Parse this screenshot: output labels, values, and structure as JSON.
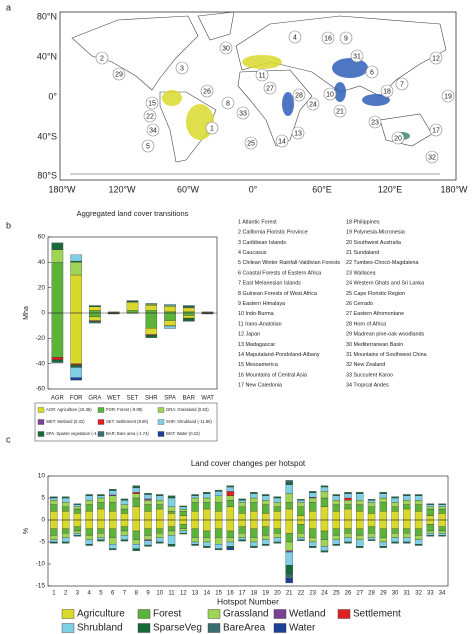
{
  "panel_labels": [
    "a",
    "b",
    "c"
  ],
  "map": {
    "lat_labels": [
      "80°N",
      "40°N",
      "0°",
      "40°S",
      "80°S"
    ],
    "lon_labels": [
      "180°W",
      "120°W",
      "60°W",
      "0°",
      "60°E",
      "120°E",
      "180°W"
    ],
    "hotspot_labels": [
      "1",
      "2",
      "3",
      "4",
      "5",
      "6",
      "7",
      "8",
      "9",
      "10",
      "11",
      "12",
      "13",
      "14",
      "15",
      "16",
      "17",
      "18",
      "19",
      "20",
      "21",
      "22",
      "23",
      "24",
      "25",
      "26",
      "27",
      "28",
      "29",
      "30",
      "31",
      "32",
      "33",
      "34"
    ]
  },
  "hotspots": [
    "1 Atlantic Forest",
    "2 California Floristic Province",
    "3 Caribbean Islands",
    "4 Caucasus",
    "5 Chilean Winter Rainfall-Valdivian Forests",
    "6 Coastal Forests of Eastern Africa",
    "7 East Melanesian Islands",
    "8 Guinean Forests of West Africa",
    "9 Eastern Himalaya",
    "10 Indo-Burma",
    "11 Irano-Anatolian",
    "12 Japan",
    "13 Madagascar",
    "14 Maputaland-Pondoland-Albany",
    "15 Mesoamerica",
    "16 Mountains of Central Asia",
    "17 New Caledonia",
    "18 Philippines",
    "19 Polynesia-Micronesia",
    "20 Southwest Australia",
    "21 Sundaland",
    "22 Tumbes-Chocó-Magdalena",
    "23 Wallacea",
    "24 Western Ghats and Sri Lanka",
    "25 Cape Floristic Region",
    "26 Cerrado",
    "27 Eastern Afromontane",
    "28 Horn of Africa",
    "29 Madrean pine-oak woodlands",
    "30 Mediterranean Basin",
    "31 Mountains of Southwest China",
    "32 New Zealand",
    "33 Succulent Karoo",
    "34 Tropical Andes"
  ],
  "chart_data": [
    {
      "type": "bar",
      "title": "Aggregated land cover transitions",
      "ylabel": "Mha",
      "categories": [
        "AGR",
        "FOR",
        "GRA",
        "WET",
        "SET",
        "SHR",
        "SPA",
        "BAR",
        "WAT"
      ],
      "ylim": [
        -60,
        60
      ],
      "yticks": [
        -60,
        -40,
        -20,
        0,
        20,
        40,
        60
      ],
      "series": [
        {
          "color": "#5bb33a",
          "values": [
            40,
            null,
            2,
            0.3,
            2,
            2,
            1,
            1,
            0.3
          ]
        },
        {
          "color": "#d9d92b",
          "values": [
            null,
            30,
            3,
            0.4,
            6,
            4,
            4,
            3,
            0.4
          ]
        },
        {
          "color": "#9fd456",
          "values": [
            10,
            10,
            null,
            0.2,
            1,
            1,
            1,
            0.5,
            0.2
          ]
        },
        {
          "color": "#166a3a",
          "values": [
            5,
            1,
            0.5,
            null,
            0.5,
            0.5,
            null,
            1,
            null
          ]
        },
        {
          "color": "#7fcfe6",
          "values": [
            0.5,
            5,
            0.5,
            null,
            0.3,
            null,
            1,
            0.5,
            null
          ]
        },
        {
          "color": "#5bb33a",
          "values": [
            -35,
            null,
            -3,
            -0.3,
            -0.2,
            -12,
            -6,
            -2,
            -0.3
          ]
        },
        {
          "color": "#d9d92b",
          "values": [
            null,
            -40,
            -3,
            -0.3,
            -0.1,
            -5,
            -4,
            -2,
            -0.3
          ]
        },
        {
          "color": "#e02020",
          "values": [
            -2,
            -1,
            -0.5,
            null,
            null,
            -0.5,
            -0.3,
            -0.2,
            null
          ]
        },
        {
          "color": "#166a3a",
          "values": [
            -2,
            -2,
            -1,
            null,
            null,
            -2,
            null,
            -2,
            -0.2
          ]
        },
        {
          "color": "#7fcfe6",
          "values": [
            -0.5,
            -8,
            -0.5,
            null,
            null,
            null,
            -2,
            -0.5,
            null
          ]
        },
        {
          "color": "#1c3f99",
          "values": [
            null,
            -2,
            null,
            -0.2,
            null,
            null,
            null,
            null,
            null
          ]
        }
      ],
      "legend": [
        {
          "label": "AGR: Agriculture (16.35)",
          "color": "#d9d92b"
        },
        {
          "label": "FOR: Forest (-9.08)",
          "color": "#5bb33a"
        },
        {
          "label": "GRA: Grassland (0.53)",
          "color": "#9fd456"
        },
        {
          "label": "WET: Wetland (0.32)",
          "color": "#7b3f98"
        },
        {
          "label": "SET: Settlement (9.80)",
          "color": "#e02020"
        },
        {
          "label": "SHR: Shrubland (-11.80)",
          "color": "#7fcfe6"
        },
        {
          "label": "SPA: Sparse vegetation (-4.60)",
          "color": "#166a3a"
        },
        {
          "label": "BAR: Bare area (-1.74)",
          "color": "#3b6e6e"
        },
        {
          "label": "WAT: Water (0.22)",
          "color": "#1c3f99"
        }
      ]
    },
    {
      "type": "bar",
      "title": "Land cover changes per hotspot",
      "ylabel": "%",
      "xlabel": "Hotspot Number",
      "categories": [
        "1",
        "2",
        "3",
        "4",
        "5",
        "6",
        "7",
        "8",
        "9",
        "10",
        "11",
        "12",
        "13",
        "14",
        "15",
        "16",
        "17",
        "18",
        "19",
        "20",
        "21",
        "22",
        "23",
        "24",
        "25",
        "26",
        "27",
        "28",
        "29",
        "30",
        "31",
        "32",
        "33",
        "34"
      ],
      "ylim": [
        -15,
        10
      ],
      "yticks": [
        -15,
        -10,
        -5,
        0,
        5,
        10
      ],
      "series": [
        {
          "name": "Agriculture",
          "color": "#d9d92b",
          "values": [
            2,
            2,
            1.5,
            2,
            2.5,
            2,
            1.5,
            3,
            2,
            2.5,
            1.5,
            1,
            2,
            2.5,
            2,
            3,
            1.5,
            2,
            1.5,
            2,
            2.5,
            1,
            2,
            3,
            2,
            2.5,
            2,
            1.5,
            2,
            2,
            2.5,
            2,
            1,
            1.5
          ],
          "losses": [
            -2,
            -2,
            -1.5,
            -2,
            -2,
            -2,
            -1.5,
            -2.5,
            -2,
            -2,
            -1.5,
            -1,
            -2,
            -2.5,
            -2,
            -2.5,
            -1.5,
            -2,
            -1.5,
            -2,
            -3,
            -1,
            -2,
            -2.5,
            -2,
            -2,
            -2,
            -1.5,
            -2,
            -2,
            -2,
            -2,
            -1,
            -1.5
          ]
        },
        {
          "name": "Forest",
          "color": "#5bb33a",
          "values": [
            1.5,
            1,
            1,
            1.5,
            1.5,
            2,
            1,
            2,
            1.5,
            1,
            0.5,
            1,
            2,
            1.5,
            2,
            1.5,
            1.5,
            2,
            2,
            1,
            1.5,
            2,
            2,
            2,
            1.5,
            1,
            1.5,
            1.5,
            2,
            1,
            1,
            1.5,
            1.5,
            1
          ],
          "losses": [
            -1.5,
            -1,
            -1,
            -1.5,
            -1,
            -2,
            -1,
            -2,
            -1.5,
            -1,
            -1,
            -1,
            -2,
            -1.5,
            -2,
            -1.5,
            -1.5,
            -2,
            -2,
            -1,
            -2,
            -2,
            -2,
            -2,
            -1.5,
            -1,
            -1.5,
            -1.5,
            -2,
            -1,
            -1,
            -1.5,
            -1.5,
            -1
          ]
        },
        {
          "name": "Grassland",
          "color": "#9fd456",
          "values": [
            1,
            1,
            0.5,
            1,
            1,
            1.5,
            1,
            1,
            1,
            1,
            1,
            0.5,
            1,
            1,
            1.5,
            1,
            1,
            1,
            1,
            1,
            2,
            1,
            1,
            1.5,
            1,
            1,
            1,
            1,
            1,
            1,
            1,
            1,
            0.5,
            0.5
          ],
          "losses": [
            -1,
            -1,
            -0.5,
            -1,
            -1,
            -1.5,
            -1,
            -1,
            -1,
            -1,
            -1,
            -0.5,
            -1,
            -1,
            -1.5,
            -1,
            -1,
            -1,
            -1,
            -1,
            -2,
            -1,
            -1,
            -1.5,
            -1,
            -1,
            -1,
            -1,
            -1,
            -1,
            -1,
            -1,
            -0.5,
            -0.5
          ]
        },
        {
          "name": "Wetland",
          "color": "#7b3f98",
          "values": [
            0,
            0,
            0,
            0,
            0,
            0.2,
            0,
            0,
            0.3,
            0,
            0,
            0,
            0,
            0,
            0,
            0,
            0,
            0,
            0,
            0,
            0,
            0,
            0.2,
            0,
            0,
            0,
            0,
            0,
            0,
            0,
            0,
            0,
            0,
            0
          ],
          "losses": [
            0,
            0,
            0,
            0,
            0,
            0,
            0,
            0,
            -0.2,
            0,
            0,
            0,
            0,
            0,
            0,
            0,
            0,
            0,
            0,
            0,
            -0.3,
            0,
            0,
            0,
            0,
            0,
            0,
            0,
            0,
            0,
            0,
            0,
            0,
            0
          ]
        },
        {
          "name": "Settlement",
          "color": "#e02020",
          "values": [
            0,
            0,
            0,
            0,
            0,
            0,
            0,
            0.3,
            0,
            0,
            0,
            0,
            0,
            0,
            0,
            1,
            0,
            0,
            0,
            0,
            0,
            0,
            0,
            0,
            0,
            0.5,
            0,
            0,
            0,
            0,
            0,
            0,
            0,
            0
          ],
          "losses": [
            0,
            0,
            0,
            0,
            0,
            0,
            0,
            0,
            0,
            0,
            0,
            0,
            0,
            0,
            0,
            0,
            0,
            0,
            0,
            0,
            0,
            0,
            0,
            0,
            0,
            0,
            0,
            0,
            0,
            0,
            0,
            0,
            0,
            0
          ]
        },
        {
          "name": "Shrubland",
          "color": "#7fcfe6",
          "values": [
            0.5,
            1,
            0.5,
            1,
            0.5,
            1,
            1,
            1,
            1,
            1,
            2,
            0.5,
            0.5,
            1,
            1,
            1,
            0.5,
            1,
            1,
            1,
            2,
            0.5,
            1,
            1,
            1,
            1,
            1.5,
            0.5,
            1,
            1,
            1,
            1,
            0.5,
            0.5
          ],
          "losses": [
            -0.5,
            -1,
            -0.5,
            -1,
            -0.5,
            -1,
            -1,
            -1,
            -1,
            -1,
            -2,
            -0.5,
            -0.5,
            -1,
            -1,
            -1,
            -0.5,
            -1,
            -1,
            -1,
            -3,
            -0.5,
            -1,
            -1,
            -1,
            -1,
            -1.5,
            -0.5,
            -1,
            -1,
            -1,
            -1,
            -0.5,
            -0.5
          ]
        },
        {
          "name": "SparseVeg",
          "color": "#166a3a",
          "values": [
            0.3,
            0.3,
            0.2,
            0.3,
            0.3,
            0.3,
            0.3,
            0.5,
            0.3,
            0.3,
            0.5,
            0.2,
            0.3,
            0.3,
            0.3,
            0.3,
            0.3,
            0.3,
            0.3,
            0.3,
            0.5,
            0.2,
            0.3,
            0.3,
            0.3,
            0.3,
            0.3,
            0.2,
            0.3,
            0.3,
            0.3,
            0.3,
            0.2,
            0.2
          ],
          "losses": [
            -0.3,
            -0.3,
            -0.2,
            -0.3,
            -0.3,
            -0.3,
            -0.3,
            -0.5,
            -0.3,
            -0.3,
            -0.5,
            -0.2,
            -0.3,
            -0.3,
            -0.3,
            -0.3,
            -0.3,
            -0.3,
            -0.3,
            -0.3,
            -2,
            -0.2,
            -0.3,
            -0.3,
            -0.3,
            -0.3,
            -0.3,
            -0.2,
            -0.3,
            -0.3,
            -0.3,
            -0.3,
            -0.2,
            -0.2
          ]
        },
        {
          "name": "BareArea",
          "color": "#3b6e6e",
          "values": [
            0,
            0,
            0,
            0,
            0,
            0,
            0,
            0,
            0,
            0,
            0,
            0,
            0,
            0,
            0,
            0,
            0,
            0,
            0,
            0,
            0.5,
            0,
            0,
            0,
            0,
            0,
            0,
            0,
            0,
            0,
            0,
            0,
            0,
            0
          ],
          "losses": [
            0,
            0,
            0,
            0,
            0,
            0,
            0,
            0,
            0,
            0,
            0,
            0,
            0,
            0,
            0,
            0,
            0,
            0,
            0,
            0,
            -1,
            0,
            0,
            0,
            0,
            0,
            0,
            0,
            0,
            0,
            0,
            0,
            0,
            0
          ]
        },
        {
          "name": "Water",
          "color": "#1c3f99",
          "values": [
            0,
            0,
            0,
            0,
            0,
            0,
            0,
            0,
            0,
            0,
            0,
            0,
            0,
            0,
            0,
            0,
            0,
            0,
            0,
            0,
            0,
            0,
            0,
            0,
            0,
            0,
            0,
            0,
            0,
            0,
            0,
            0,
            0,
            0
          ],
          "losses": [
            0,
            0,
            0,
            0,
            0,
            0,
            0,
            0,
            0,
            0,
            0,
            0,
            0,
            0,
            0,
            -0.5,
            0,
            0,
            0,
            0,
            -1,
            0,
            0,
            0,
            0,
            0,
            0,
            0,
            0,
            0,
            0,
            0,
            0,
            0
          ]
        }
      ]
    }
  ]
}
